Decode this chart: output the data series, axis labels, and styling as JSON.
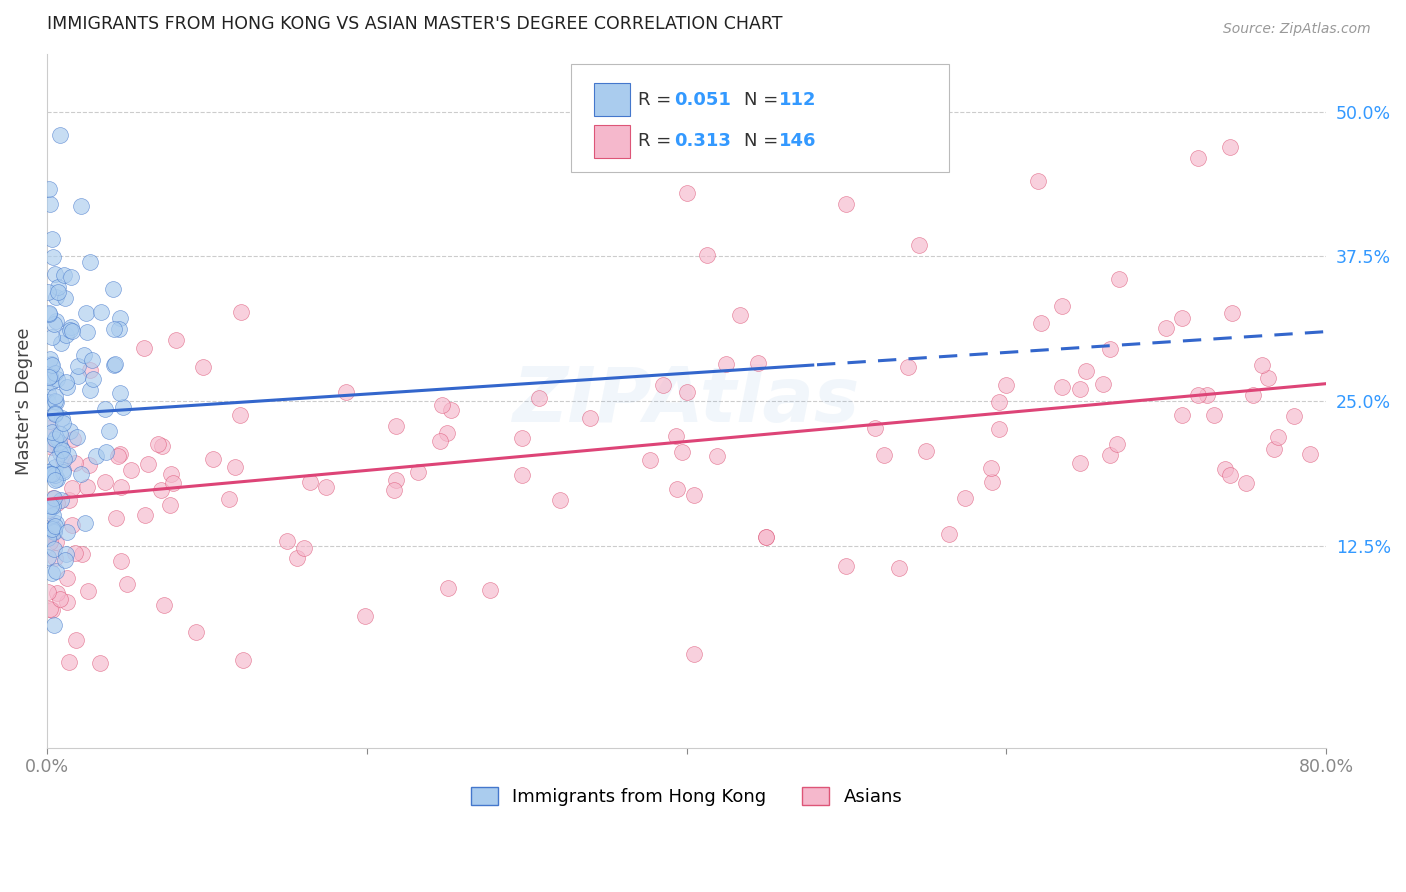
{
  "title": "IMMIGRANTS FROM HONG KONG VS ASIAN MASTER'S DEGREE CORRELATION CHART",
  "source": "Source: ZipAtlas.com",
  "ylabel": "Master's Degree",
  "ytick_values": [
    0.125,
    0.25,
    0.375,
    0.5
  ],
  "xlim": [
    0.0,
    0.8
  ],
  "ylim": [
    -0.05,
    0.55
  ],
  "series1_label": "Immigrants from Hong Kong",
  "series2_label": "Asians",
  "series1_color": "#aaccee",
  "series2_color": "#f5b8cc",
  "series1_edge_color": "#4477cc",
  "series2_edge_color": "#dd5577",
  "series1_line_color": "#3366cc",
  "series2_line_color": "#dd4477",
  "series1_R": 0.051,
  "series1_N": 112,
  "series2_R": 0.313,
  "series2_N": 146,
  "legend_color": "#3399ff",
  "watermark": "ZIPAtlas",
  "background_color": "#ffffff",
  "grid_color": "#cccccc",
  "blue_line_solid_end": 0.48,
  "blue_line_y_start": 0.238,
  "blue_line_y_end": 0.31,
  "pink_line_y_start": 0.165,
  "pink_line_y_end": 0.265
}
